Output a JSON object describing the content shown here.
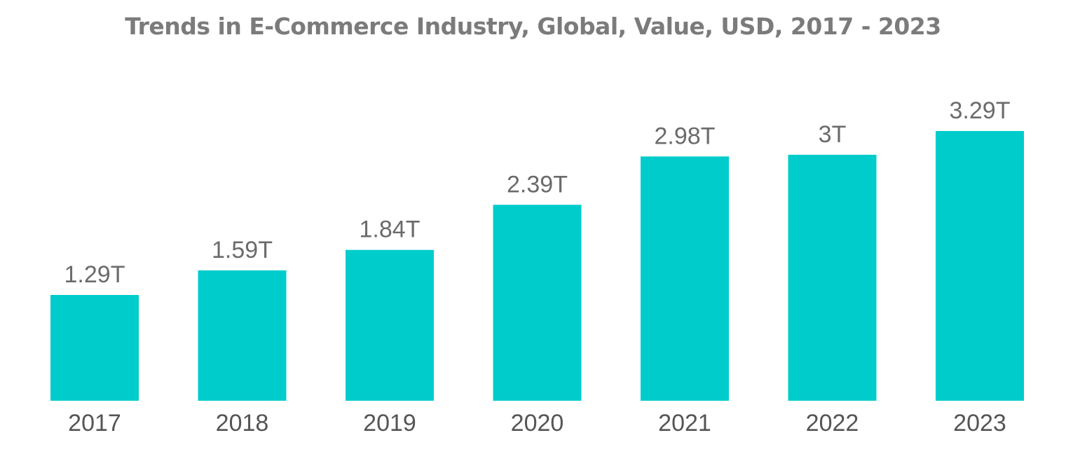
{
  "chart_data": {
    "type": "bar",
    "title": "Trends in E-Commerce Industry, Global, Value, USD, 2017 - 2023",
    "categories": [
      "2017",
      "2018",
      "2019",
      "2020",
      "2021",
      "2022",
      "2023"
    ],
    "values": [
      1.29,
      1.59,
      1.84,
      2.39,
      2.98,
      3.0,
      3.29
    ],
    "value_labels": [
      "1.29T",
      "1.59T",
      "1.84T",
      "2.39T",
      "2.98T",
      "3T",
      "3.29T"
    ],
    "xlabel": "",
    "ylabel": "",
    "ylim": [
      0,
      3.29
    ],
    "grid": false,
    "legend": "none",
    "bar_color": "#00cccc"
  }
}
